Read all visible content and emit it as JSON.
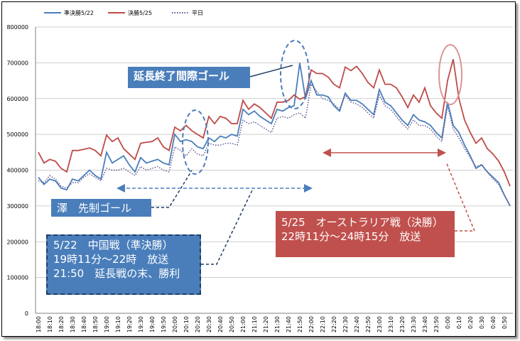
{
  "chart_data": {
    "type": "line",
    "categories": [
      "18:00",
      null,
      "18:10",
      null,
      "18:20",
      null,
      "18:30",
      null,
      "18:40",
      null,
      "18:50",
      null,
      "19:00",
      null,
      "19:10",
      null,
      "19:20",
      null,
      "19:30",
      null,
      "19:40",
      null,
      "19:50",
      null,
      "20:00",
      null,
      "20:10",
      null,
      "20:20",
      null,
      "20:30",
      null,
      "20:40",
      null,
      "20:50",
      null,
      "21:00",
      null,
      "21:10",
      null,
      "21:20",
      null,
      "21:30",
      null,
      "21:40",
      null,
      "21:50",
      null,
      "22:00",
      null,
      "22:10",
      null,
      "22:20",
      null,
      "22:30",
      null,
      "22:40",
      null,
      "22:50",
      null,
      "23:00",
      null,
      "23:10",
      null,
      "23:20",
      null,
      "23:30",
      null,
      "23:40",
      null,
      "23:50",
      null,
      "0:00",
      null,
      "0:10",
      null,
      "0:20",
      null,
      "0:30",
      null,
      "0:40",
      null,
      "0:50",
      null
    ],
    "series": [
      {
        "name": "準決勝5/22",
        "color": "#4a7ebb",
        "line_style": "solid",
        "values": [
          380000,
          360000,
          375000,
          370000,
          350000,
          345000,
          375000,
          370000,
          385000,
          400000,
          385000,
          375000,
          450000,
          420000,
          430000,
          440000,
          415000,
          395000,
          435000,
          420000,
          425000,
          430000,
          420000,
          415000,
          500000,
          480000,
          485000,
          480000,
          465000,
          460000,
          490000,
          480000,
          495000,
          490000,
          500000,
          495000,
          570000,
          555000,
          565000,
          550000,
          540000,
          530000,
          570000,
          565000,
          575000,
          580000,
          700000,
          600000,
          650000,
          610000,
          610000,
          605000,
          580000,
          565000,
          615000,
          595000,
          595000,
          585000,
          570000,
          555000,
          625000,
          590000,
          580000,
          560000,
          540000,
          525000,
          555000,
          540000,
          535000,
          525000,
          505000,
          490000,
          590000,
          525000,
          505000,
          470000,
          440000,
          405000,
          415000,
          395000,
          380000,
          365000,
          330000,
          300000
        ]
      },
      {
        "name": "決勝5/25",
        "color": "#be4b48",
        "line_style": "solid",
        "values": [
          450000,
          420000,
          430000,
          425000,
          405000,
          395000,
          455000,
          455000,
          458000,
          462000,
          455000,
          440000,
          498000,
          480000,
          490000,
          460000,
          445000,
          430000,
          475000,
          478000,
          480000,
          490000,
          465000,
          455000,
          520000,
          510000,
          525000,
          510000,
          500000,
          490000,
          550000,
          530000,
          550000,
          545000,
          530000,
          530000,
          595000,
          570000,
          585000,
          575000,
          560000,
          545000,
          590000,
          590000,
          595000,
          610000,
          598000,
          605000,
          680000,
          670000,
          670000,
          660000,
          640000,
          630000,
          688000,
          678000,
          690000,
          670000,
          645000,
          630000,
          680000,
          640000,
          640000,
          630000,
          605000,
          575000,
          610000,
          590000,
          630000,
          580000,
          560000,
          545000,
          650000,
          710000,
          600000,
          540000,
          505000,
          475000,
          490000,
          460000,
          445000,
          425000,
          395000,
          355000
        ]
      },
      {
        "name": "平日",
        "color": "#5e4f8f",
        "line_style": "dotted",
        "values": [
          370000,
          365000,
          385000,
          375000,
          355000,
          350000,
          365000,
          365000,
          380000,
          390000,
          380000,
          370000,
          405000,
          400000,
          400000,
          405000,
          395000,
          385000,
          410000,
          400000,
          405000,
          410000,
          400000,
          395000,
          465000,
          455000,
          440000,
          460000,
          445000,
          440000,
          475000,
          470000,
          470000,
          475000,
          475000,
          470000,
          540000,
          530000,
          535000,
          525000,
          515000,
          505000,
          545000,
          550000,
          545000,
          555000,
          560000,
          545000,
          640000,
          620000,
          600000,
          595000,
          585000,
          570000,
          610000,
          590000,
          585000,
          575000,
          560000,
          545000,
          610000,
          580000,
          570000,
          550000,
          530000,
          515000,
          540000,
          525000,
          525000,
          515000,
          495000,
          480000,
          580000,
          515000,
          490000,
          460000,
          435000,
          410000,
          415000,
          395000,
          375000,
          360000,
          330000,
          300000
        ]
      }
    ],
    "ylim": [
      0,
      800000
    ],
    "yticks": [
      0,
      100000,
      200000,
      300000,
      400000,
      500000,
      600000,
      700000,
      800000
    ],
    "grid": true,
    "legend": "top",
    "annotations": [
      "延長終了間際ゴール",
      "澤　先制ゴール",
      "5/22　中国戦（準決勝）",
      "19時11分～22時　放送",
      "21:50　延長戦の末、勝利",
      "5/25　オーストラリア戦（決勝）",
      "22時11分～24時15分　放送"
    ]
  }
}
